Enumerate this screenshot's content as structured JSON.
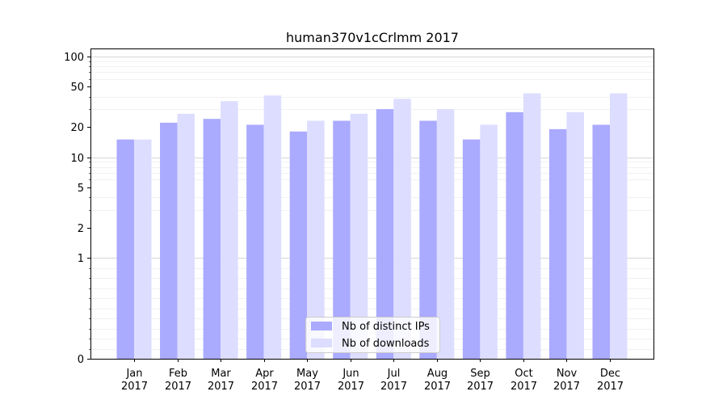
{
  "chart_data": {
    "type": "bar",
    "title": "human370v1cCrlmm 2017",
    "xlabel": "",
    "ylabel": "",
    "yscale": "symlog",
    "ylim": [
      0,
      120
    ],
    "yticks": [
      0,
      1,
      2,
      5,
      10,
      20,
      50,
      100
    ],
    "categories": [
      [
        "Jan",
        "2017"
      ],
      [
        "Feb",
        "2017"
      ],
      [
        "Mar",
        "2017"
      ],
      [
        "Apr",
        "2017"
      ],
      [
        "May",
        "2017"
      ],
      [
        "Jun",
        "2017"
      ],
      [
        "Jul",
        "2017"
      ],
      [
        "Aug",
        "2017"
      ],
      [
        "Sep",
        "2017"
      ],
      [
        "Oct",
        "2017"
      ],
      [
        "Nov",
        "2017"
      ],
      [
        "Dec",
        "2017"
      ]
    ],
    "series": [
      {
        "name": "Nb of distinct IPs",
        "color": "#aaaaff",
        "values": [
          15,
          22,
          24,
          21,
          18,
          23,
          30,
          23,
          15,
          28,
          19,
          21
        ]
      },
      {
        "name": "Nb of downloads",
        "color": "#ddddff",
        "values": [
          15,
          27,
          36,
          41,
          23,
          27,
          38,
          30,
          21,
          43,
          28,
          43
        ]
      }
    ],
    "grid": true,
    "legend_position": "bottom-center"
  }
}
